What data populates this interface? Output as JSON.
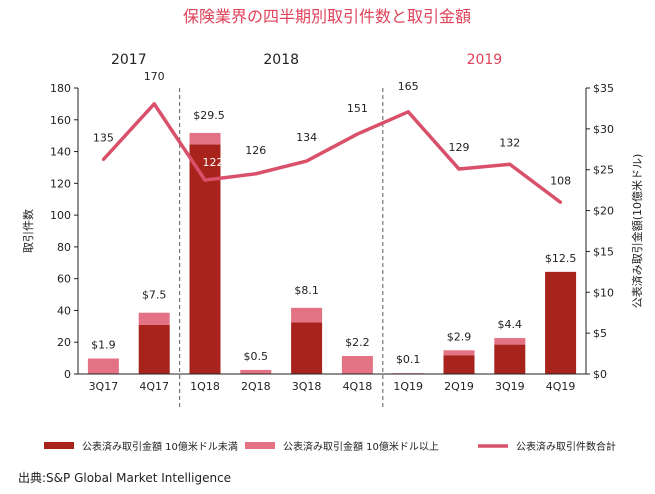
{
  "title": "保険業界の四半期別取引件数と取引金額",
  "source": "出典:S&P Global Market Intelligence",
  "chart_data": {
    "type": "bar+line",
    "years": [
      {
        "label": "2017",
        "highlight": false
      },
      {
        "label": "2018",
        "highlight": false
      },
      {
        "label": "2019",
        "highlight": true
      }
    ],
    "categories": [
      "3Q17",
      "4Q17",
      "1Q18",
      "2Q18",
      "3Q18",
      "4Q18",
      "1Q19",
      "2Q19",
      "3Q19",
      "4Q19"
    ],
    "y_left": {
      "label": "取引件数",
      "min": 0,
      "max": 180,
      "ticks": [
        "0",
        "20",
        "40",
        "60",
        "80",
        "100",
        "120",
        "140",
        "160",
        "180"
      ]
    },
    "y_right": {
      "label": "公表済み取引金額(10億米ドル)",
      "min": 0,
      "max": 35,
      "ticks": [
        "$0",
        "$5",
        "$10",
        "$15",
        "$20",
        "$25",
        "$30",
        "$35"
      ]
    },
    "series": [
      {
        "name": "公表済み取引金額 10億米ドル未満",
        "axis": "right",
        "kind": "bar",
        "color": "#a8231b",
        "values": [
          0,
          6.0,
          28.1,
          0,
          6.3,
          0,
          0,
          2.3,
          3.6,
          12.5
        ]
      },
      {
        "name": "公表済み取引金額 10億米ドル以上",
        "axis": "right",
        "kind": "bar",
        "color": "#e37384",
        "values": [
          1.9,
          1.5,
          1.4,
          0.5,
          1.8,
          2.2,
          0.1,
          0.6,
          0.8,
          0
        ]
      },
      {
        "name": "公表済み取引件数合計",
        "axis": "left",
        "kind": "line",
        "color": "#d9506a",
        "values": [
          135,
          170,
          122,
          126,
          134,
          151,
          165,
          129,
          132,
          108
        ]
      }
    ],
    "bar_labels": [
      "$1.9",
      "$7.5",
      "$29.5",
      "$0.5",
      "$8.1",
      "$2.2",
      "$0.1",
      "$2.9",
      "$4.4",
      "$12.5"
    ],
    "line_labels": [
      "135",
      "170",
      "122",
      "126",
      "134",
      "151",
      "165",
      "129",
      "132",
      "108"
    ],
    "dividers_after": [
      1,
      5
    ],
    "legend_position": "bottom",
    "grid": false
  }
}
